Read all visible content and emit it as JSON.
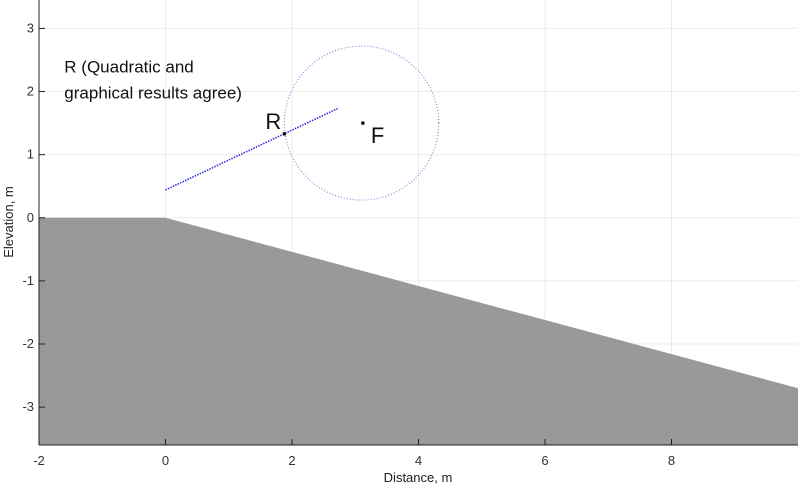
{
  "chart_data": {
    "type": "line",
    "title": "",
    "xlabel": "Distance, m",
    "ylabel": "Elevation, m",
    "xlim": [
      -2,
      10
    ],
    "ylim": [
      -3.6,
      3.45
    ],
    "grid": true,
    "legend": "none",
    "x_ticks": [
      -2,
      0,
      2,
      4,
      6,
      8
    ],
    "x_tick_labels": [
      "-2",
      "0",
      "2",
      "4",
      "6",
      "8"
    ],
    "y_ticks": [
      3,
      2,
      1,
      0,
      -1,
      -2,
      -3
    ],
    "y_tick_labels": [
      "3",
      "2",
      "1",
      "0",
      "-1",
      "-2",
      "-3"
    ],
    "colors": {
      "terrain": "#999999",
      "ray": "#3232e6",
      "circle": "#8080e0",
      "grid": "#ebebeb",
      "axis": "#222222",
      "point": "#111111"
    },
    "series": [
      {
        "name": "terrain",
        "kind": "filled-area",
        "x": [
          -2,
          0,
          10
        ],
        "y": [
          0,
          0,
          -2.7
        ]
      },
      {
        "name": "ray",
        "kind": "dotted-line",
        "x": [
          0,
          2.72
        ],
        "y": [
          0.44,
          1.73
        ]
      },
      {
        "name": "circle",
        "kind": "dotted-circle",
        "center": [
          3.1,
          1.5
        ],
        "radius": 1.22
      }
    ],
    "points": [
      {
        "name": "R",
        "x": 1.88,
        "y": 1.33,
        "label": "R"
      },
      {
        "name": "F",
        "x": 3.12,
        "y": 1.5,
        "label": "F"
      }
    ],
    "annotation": {
      "line1": "R (Quadratic and",
      "line2": "graphical results agree)",
      "x": -1.6,
      "y": 2.3
    }
  }
}
